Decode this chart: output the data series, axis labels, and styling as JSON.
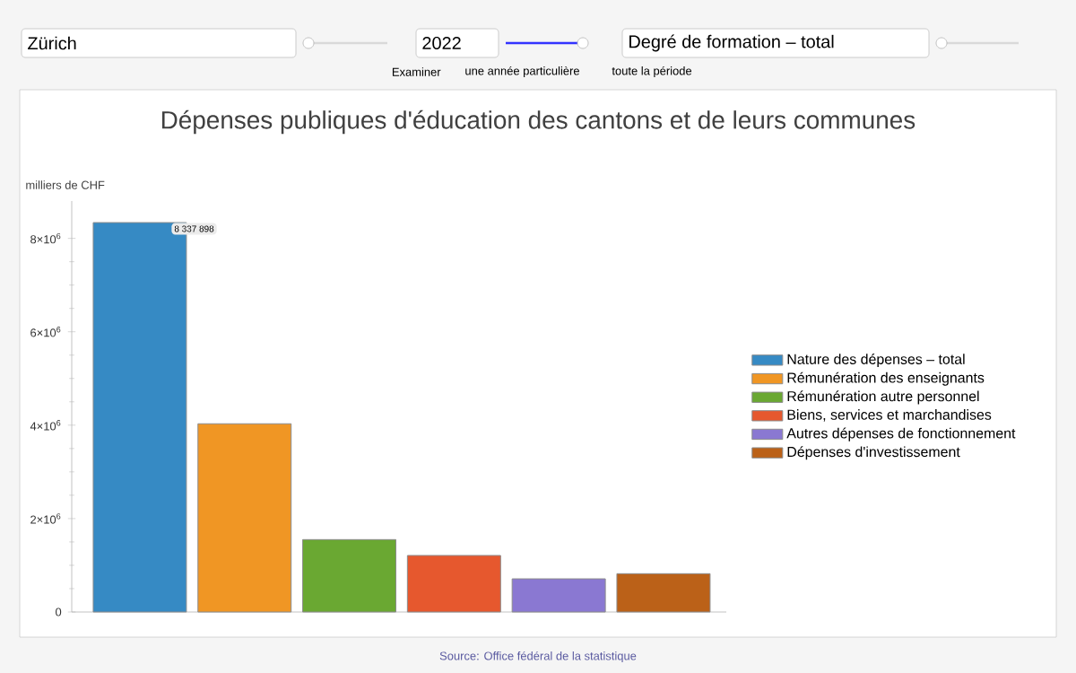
{
  "chart_data": {
    "type": "bar",
    "title": "Dépenses publiques d'éducation des cantons et de leurs communes",
    "ylabel": "milliers de CHF",
    "categories": [
      null,
      null,
      null,
      null,
      null,
      null
    ],
    "series": [
      {
        "name": "Nature des dépenses – total",
        "color": "#368ac4",
        "values": [
          8337898,
          null,
          null,
          null,
          null,
          null
        ],
        "value_labels": [
          "8 337 898",
          null,
          null,
          null,
          null,
          null
        ]
      },
      {
        "name": "Rémunération des enseignants",
        "color": "#f09624",
        "values": [
          null,
          4030000,
          null,
          null,
          null,
          null
        ]
      },
      {
        "name": "Rémunération autre personnel",
        "color": "#6aa832",
        "values": [
          null,
          null,
          1550000,
          null,
          null,
          null
        ]
      },
      {
        "name": "Biens, services et marchandises",
        "color": "#e6582e",
        "values": [
          null,
          null,
          null,
          1210000,
          null,
          null
        ]
      },
      {
        "name": "Autres dépenses de fonctionnement",
        "color": "#8a78d2",
        "values": [
          null,
          null,
          null,
          null,
          710000,
          null
        ]
      },
      {
        "name": "Dépenses d'investissement",
        "color": "#bb6118",
        "values": [
          null,
          null,
          null,
          null,
          null,
          820000
        ]
      }
    ],
    "ylim": [
      0,
      8800000
    ],
    "yticks": [
      0,
      {
        "value": 2000000,
        "label": "2×10$^{6}$"
      },
      {
        "value": 4000000,
        "label": "4×10$^{6}$"
      },
      {
        "value": 6000000,
        "label": "6×10$^{6}$"
      },
      {
        "value": 8000000,
        "label": "8×10$^{6}$"
      }
    ],
    "legend": "right",
    "annotations": [
      "Zürich",
      "2022",
      "Degré de formation – total",
      "Examiner",
      "une année particulière",
      "toute la période",
      "Source: Office fédéral de la statistique"
    ]
  }
}
